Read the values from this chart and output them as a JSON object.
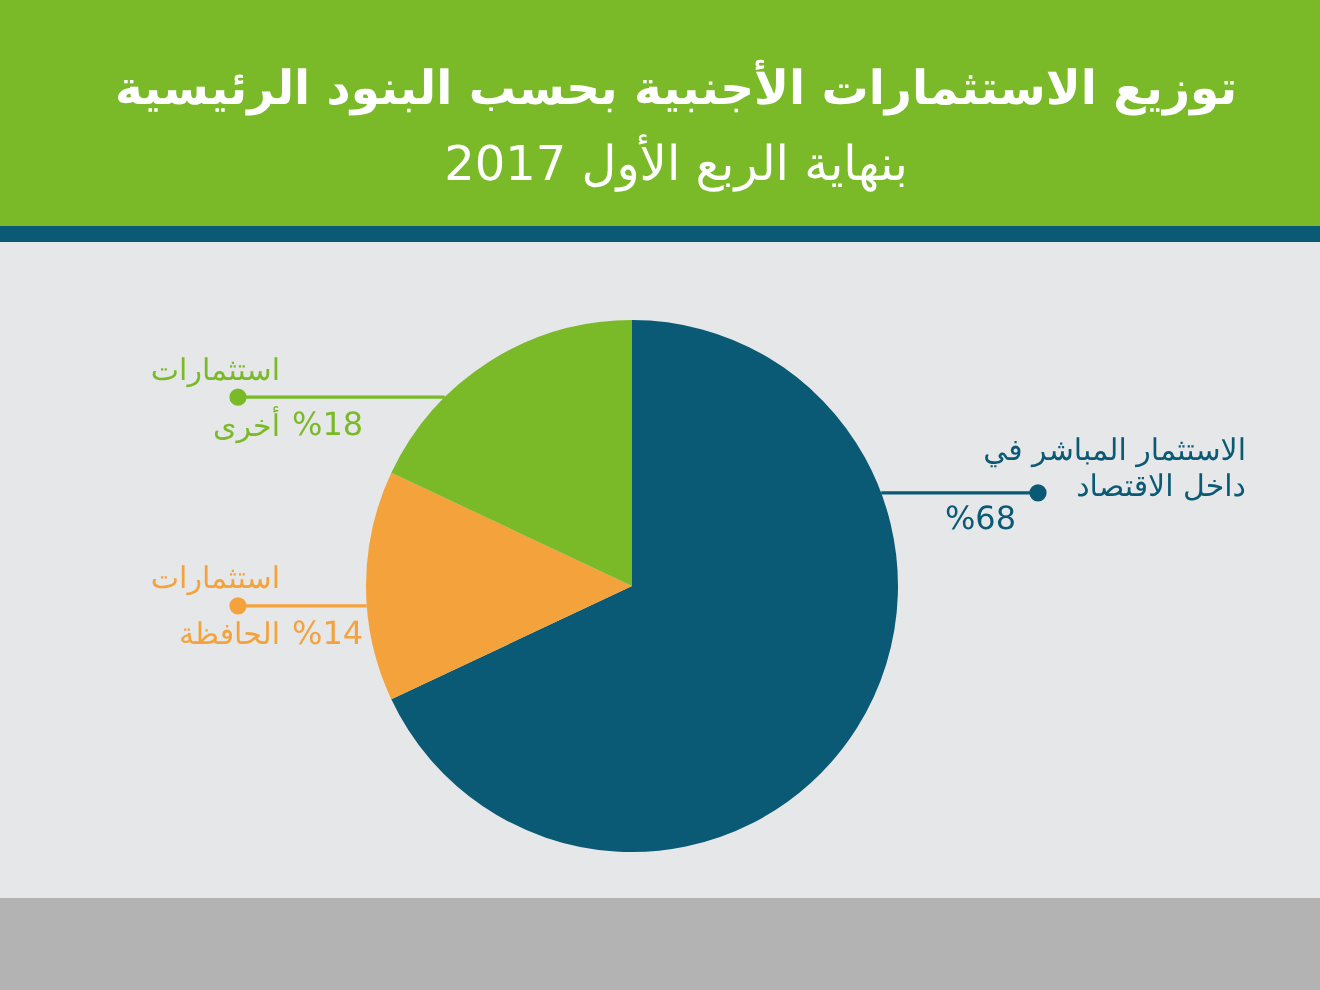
{
  "chart_data": {
    "type": "pie",
    "title": "توزيع الاستثمارات الأجنبية بحسب البنود الرئيسية",
    "subtitle": "بنهاية الربع الأول 2017",
    "categories": [
      "الاستثمار المباشر في\nداخل الاقتصاد",
      "استثمارات\nالحافظة",
      "استثمارات\nأخرى"
    ],
    "values": [
      68,
      14,
      18
    ],
    "colors": [
      "#0b5a75",
      "#f4a23c",
      "#7aba28"
    ],
    "value_labels": [
      "%68",
      "%14",
      "%18"
    ]
  }
}
